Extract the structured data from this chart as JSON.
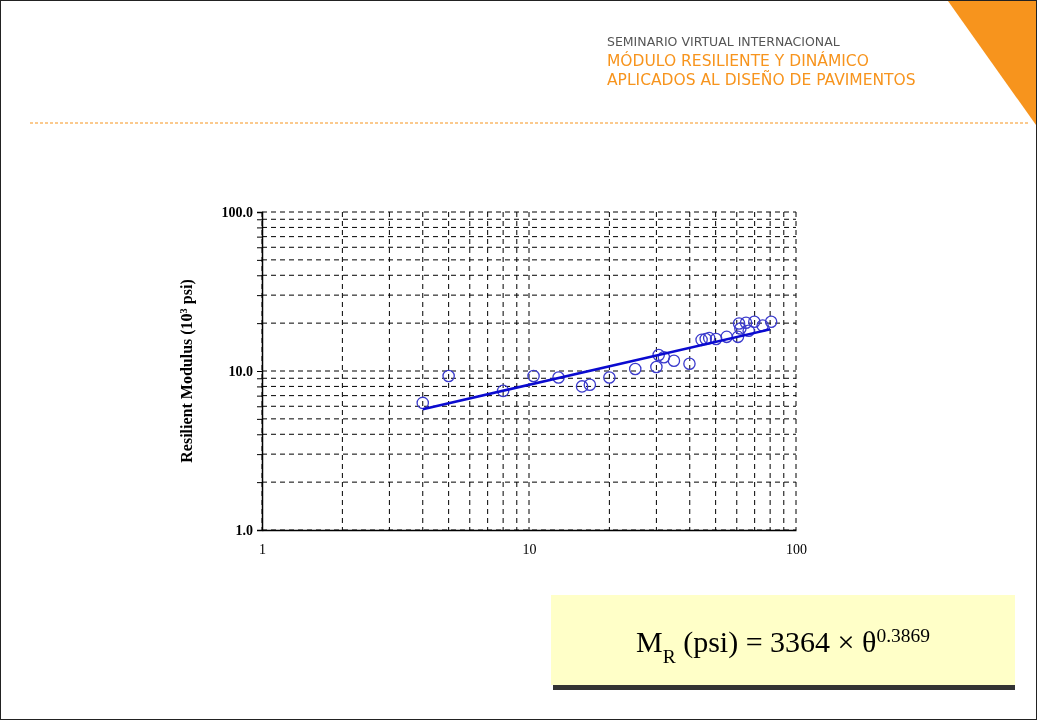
{
  "chart_data": {
    "type": "scatter",
    "title": "SEMINARIO VIRTUAL INTERNACIONAL",
    "subtitle": "MÓDULO RESILIENTE Y DINÁMICO APLICADOS AL DISEÑO DE PAVIMENTOS",
    "ylabel": "Resilient Modulus (10$^{3}$ psi)",
    "annotations": [
      "M$_{R}$ (psi) = 3364 × θ$^{0.3869}$"
    ],
    "log": "xy",
    "grid": true,
    "xlim": [
      1,
      100
    ],
    "ylim": [
      1,
      100
    ],
    "xticks": [
      1,
      {
        "value": 2,
        "label": null
      },
      {
        "value": 3,
        "label": null
      },
      {
        "value": 4,
        "label": null
      },
      {
        "value": 5,
        "label": null
      },
      {
        "value": 6,
        "label": null
      },
      {
        "value": 7,
        "label": null
      },
      {
        "value": 8,
        "label": null
      },
      {
        "value": 9,
        "label": null
      },
      10,
      {
        "value": 20,
        "label": null
      },
      {
        "value": 30,
        "label": null
      },
      {
        "value": 40,
        "label": null
      },
      {
        "value": 50,
        "label": null
      },
      {
        "value": 60,
        "label": null
      },
      {
        "value": 70,
        "label": null
      },
      {
        "value": 80,
        "label": null
      },
      {
        "value": 90,
        "label": null
      },
      100
    ],
    "yticks": [
      {
        "value": 1,
        "label": "1.0"
      },
      {
        "value": 2,
        "label": null
      },
      {
        "value": 3,
        "label": null
      },
      {
        "value": 4,
        "label": null
      },
      {
        "value": 5,
        "label": null
      },
      {
        "value": 6,
        "label": null
      },
      {
        "value": 7,
        "label": null
      },
      {
        "value": 8,
        "label": null
      },
      {
        "value": 9,
        "label": null
      },
      {
        "value": 10,
        "label": "10.0"
      },
      {
        "value": 20,
        "label": null
      },
      {
        "value": 30,
        "label": null
      },
      {
        "value": 40,
        "label": null
      },
      {
        "value": 50,
        "label": null
      },
      {
        "value": 60,
        "label": null
      },
      {
        "value": 70,
        "label": null
      },
      {
        "value": 80,
        "label": null
      },
      {
        "value": 90,
        "label": null
      },
      {
        "value": 100,
        "label": "100.0"
      }
    ],
    "series": [
      {
        "marker": "circle",
        "color": "#3a3acc",
        "x": [
          4.0,
          5.0,
          8.0,
          10.4,
          12.9,
          15.8,
          16.9,
          20,
          25,
          30,
          30.6,
          32,
          34.9,
          39.9,
          44.3,
          45.9,
          47.3,
          50.2,
          55,
          60.6,
          61.2,
          61.9,
          65,
          66.5,
          69.8,
          75,
          80.7
        ],
        "values": [
          6.3,
          9.3,
          7.5,
          9.3,
          9.1,
          8.0,
          8.2,
          9.1,
          10.3,
          10.6,
          12.6,
          12.2,
          11.6,
          11.1,
          15.7,
          15.9,
          16.1,
          15.9,
          16.4,
          16.4,
          19.9,
          18.5,
          20.1,
          17.9,
          20.4,
          19.3,
          20.4
        ]
      },
      {
        "type": "line",
        "marker": "none",
        "line_style": "solid",
        "color": "#0a0ad0",
        "x": [
          4,
          80
        ],
        "values": [
          5.75,
          18.3
        ]
      }
    ]
  }
}
